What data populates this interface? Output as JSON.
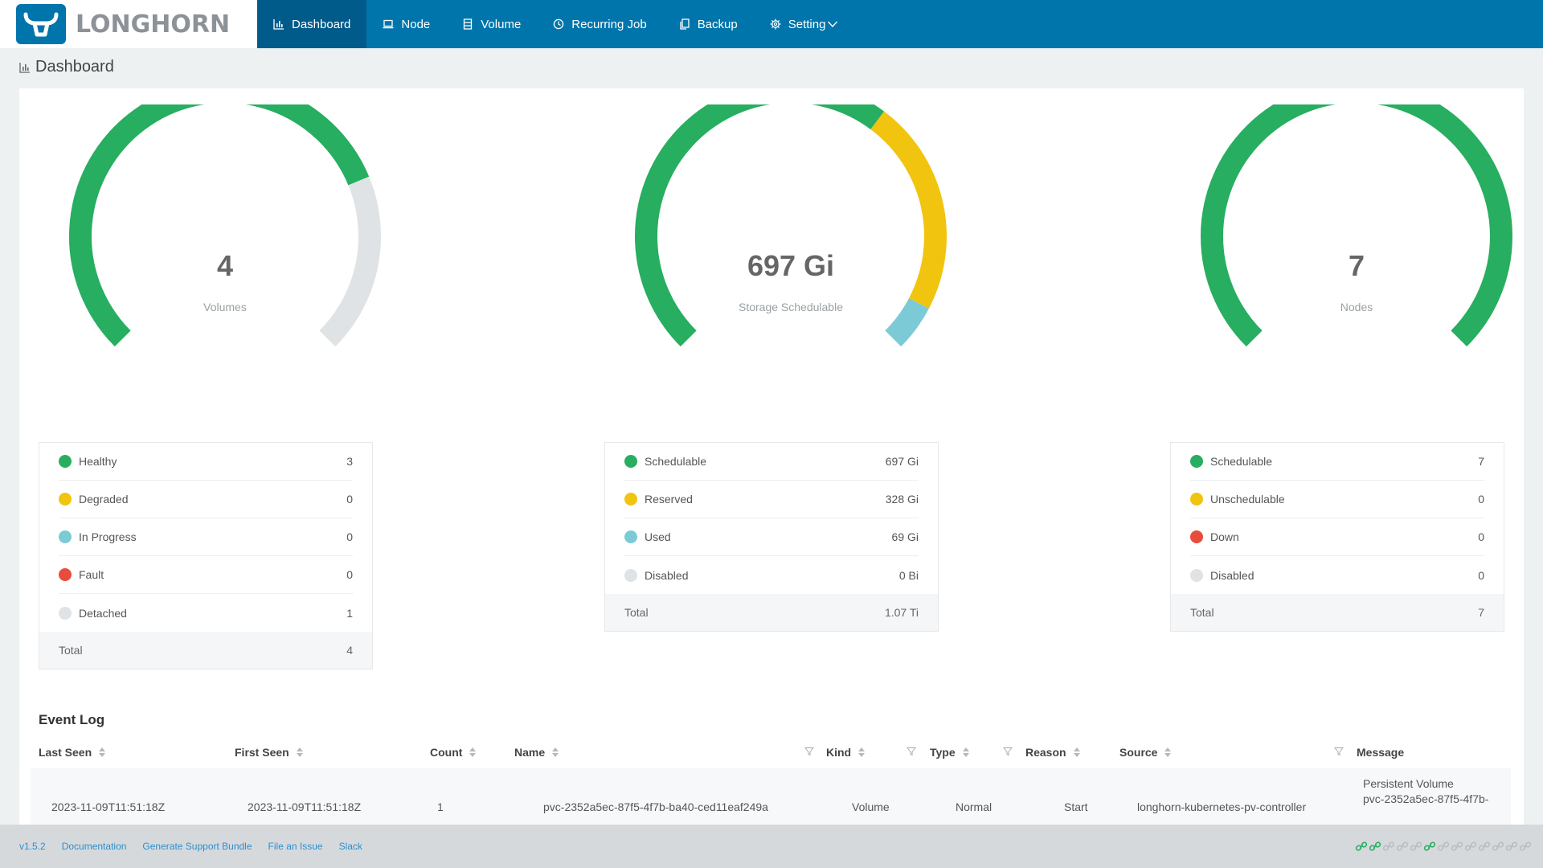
{
  "app": {
    "brand": "LONGHORN"
  },
  "nav": [
    {
      "label": "Dashboard",
      "icon": "bar-chart-icon",
      "active": true
    },
    {
      "label": "Node",
      "icon": "laptop-icon"
    },
    {
      "label": "Volume",
      "icon": "database-icon"
    },
    {
      "label": "Recurring Job",
      "icon": "clock-icon"
    },
    {
      "label": "Backup",
      "icon": "copy-icon"
    },
    {
      "label": "Setting",
      "icon": "gear-icon"
    }
  ],
  "page": {
    "title": "Dashboard"
  },
  "gauges": [
    {
      "value": "4",
      "label": "Volumes",
      "segments": [
        {
          "fraction": 0.75,
          "color": "#27ae60"
        },
        {
          "fraction": 0.25,
          "color": "#dfe3e5"
        }
      ]
    },
    {
      "value": "697 Gi",
      "label": "Storage Schedulable",
      "segments": [
        {
          "fraction": 0.6362,
          "color": "#27ae60"
        },
        {
          "fraction": 0.2994,
          "color": "#f1c40f"
        },
        {
          "fraction": 0.0644,
          "color": "#7ccad6"
        }
      ]
    },
    {
      "value": "7",
      "label": "Nodes",
      "segments": [
        {
          "fraction": 1.0,
          "color": "#27ae60"
        }
      ]
    }
  ],
  "legends": [
    {
      "rows": [
        {
          "label": "Healthy",
          "value": "3",
          "color": "#27ae60"
        },
        {
          "label": "Degraded",
          "value": "0",
          "color": "#f1c40f"
        },
        {
          "label": "In Progress",
          "value": "0",
          "color": "#7ccad6"
        },
        {
          "label": "Fault",
          "value": "0",
          "color": "#e74c3c"
        },
        {
          "label": "Detached",
          "value": "1",
          "color": "#dfe3e5"
        }
      ],
      "total_label": "Total",
      "total_value": "4"
    },
    {
      "rows": [
        {
          "label": "Schedulable",
          "value": "697 Gi",
          "color": "#27ae60"
        },
        {
          "label": "Reserved",
          "value": "328 Gi",
          "color": "#f1c40f"
        },
        {
          "label": "Used",
          "value": "69 Gi",
          "color": "#7ccad6"
        },
        {
          "label": "Disabled",
          "value": "0 Bi",
          "color": "#dfe3e5"
        }
      ],
      "total_label": "Total",
      "total_value": "1.07 Ti"
    },
    {
      "rows": [
        {
          "label": "Schedulable",
          "value": "7",
          "color": "#27ae60"
        },
        {
          "label": "Unschedulable",
          "value": "0",
          "color": "#f1c40f"
        },
        {
          "label": "Down",
          "value": "0",
          "color": "#e74c3c"
        },
        {
          "label": "Disabled",
          "value": "0",
          "color": "#dfe3e5"
        }
      ],
      "total_label": "Total",
      "total_value": "7"
    }
  ],
  "event_log": {
    "title": "Event Log",
    "columns": [
      "Last Seen",
      "First Seen",
      "Count",
      "Name",
      "Kind",
      "Type",
      "Reason",
      "Source",
      "Message"
    ],
    "rows": [
      {
        "last_seen": "2023-11-09T11:51:18Z",
        "first_seen": "2023-11-09T11:51:18Z",
        "count": "1",
        "name": "pvc-2352a5ec-87f5-4f7b-ba40-ced11eaf249a",
        "kind": "Volume",
        "type": "Normal",
        "reason": "Start",
        "source": "longhorn-kubernetes-pv-controller",
        "message_line1": "Persistent Volume",
        "message_line2": "pvc-2352a5ec-87f5-4f7b-"
      }
    ]
  },
  "footer": {
    "version": "v1.5.2",
    "documentation": "Documentation",
    "support_bundle": "Generate Support Bundle",
    "file_issue": "File an Issue",
    "slack": "Slack",
    "link_status": [
      "ok",
      "ok",
      "idle",
      "idle",
      "idle",
      "ok",
      "idle",
      "idle",
      "idle",
      "idle",
      "idle",
      "idle",
      "idle"
    ]
  }
}
